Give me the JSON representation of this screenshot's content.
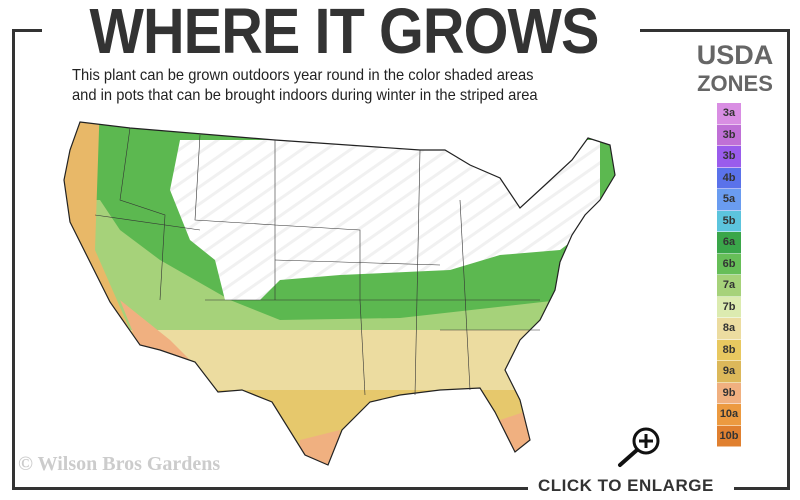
{
  "title": "WHERE IT GROWS",
  "subtitle": [
    "This plant can be grown outdoors year round in the color shaded areas",
    "and in pots that can be brought indoors during winter in the striped area"
  ],
  "legend": {
    "title_line1": "USDA",
    "title_line2": "ZONES",
    "zones": [
      {
        "label": "3a",
        "color": "#d98ee3"
      },
      {
        "label": "3b",
        "color": "#c070d6"
      },
      {
        "label": "3b",
        "color": "#9a5cec"
      },
      {
        "label": "4b",
        "color": "#5a72ea"
      },
      {
        "label": "5a",
        "color": "#6a9cf0"
      },
      {
        "label": "5b",
        "color": "#5cc4dd"
      },
      {
        "label": "6a",
        "color": "#3aa64a"
      },
      {
        "label": "6b",
        "color": "#66be58"
      },
      {
        "label": "7a",
        "color": "#a6d27a"
      },
      {
        "label": "7b",
        "color": "#dcebb0"
      },
      {
        "label": "8a",
        "color": "#ecdca0"
      },
      {
        "label": "8b",
        "color": "#e8c860"
      },
      {
        "label": "9a",
        "color": "#dcb85a"
      },
      {
        "label": "9b",
        "color": "#f0b080"
      },
      {
        "label": "10a",
        "color": "#ec9a40"
      },
      {
        "label": "10b",
        "color": "#e08030"
      }
    ]
  },
  "copyright": "© Wilson Bros Gardens",
  "enlarge_label": "CLICK TO ENLARGE",
  "icons": {
    "enlarge": "magnifier-plus-icon"
  }
}
